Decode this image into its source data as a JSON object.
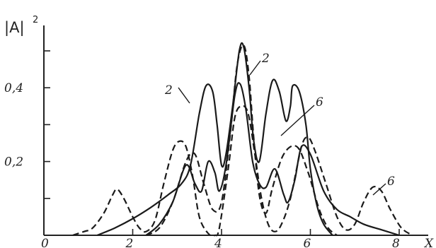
{
  "chart_data": {
    "type": "line",
    "title": "",
    "ylabel": "|A|",
    "ylabel_sup": "2",
    "xlabel": "X",
    "xlim": [
      0,
      8.8
    ],
    "ylim": [
      0,
      0.52
    ],
    "origin_label": "0",
    "x_ticks": [
      {
        "value": 2,
        "label": "2"
      },
      {
        "value": 4,
        "label": "4"
      },
      {
        "value": 6,
        "label": "6"
      },
      {
        "value": 8,
        "label": "8"
      }
    ],
    "y_ticks": [
      {
        "value": 0.2,
        "label": "0,2"
      },
      {
        "value": 0.4,
        "label": "0,4"
      }
    ],
    "y_minor_ticks": [
      0.1,
      0.3,
      0.5
    ],
    "grid": false,
    "legend": "none",
    "series": [
      {
        "name": "2",
        "style": "solid",
        "points": [
          [
            1.2,
            0.0
          ],
          [
            1.6,
            0.02
          ],
          [
            2.0,
            0.045
          ],
          [
            2.4,
            0.075
          ],
          [
            2.8,
            0.11
          ],
          [
            3.1,
            0.14
          ],
          [
            3.3,
            0.19
          ],
          [
            3.5,
            0.33
          ],
          [
            3.65,
            0.405
          ],
          [
            3.8,
            0.39
          ],
          [
            3.9,
            0.3
          ],
          [
            4.0,
            0.19
          ],
          [
            4.1,
            0.22
          ],
          [
            4.25,
            0.35
          ],
          [
            4.4,
            0.5
          ],
          [
            4.5,
            0.51
          ],
          [
            4.62,
            0.4
          ],
          [
            4.72,
            0.26
          ],
          [
            4.85,
            0.2
          ],
          [
            5.0,
            0.33
          ],
          [
            5.15,
            0.42
          ],
          [
            5.3,
            0.39
          ],
          [
            5.45,
            0.31
          ],
          [
            5.55,
            0.35
          ],
          [
            5.6,
            0.405
          ],
          [
            5.75,
            0.39
          ],
          [
            5.9,
            0.3
          ],
          [
            6.0,
            0.18
          ],
          [
            6.15,
            0.08
          ],
          [
            6.3,
            0.03
          ],
          [
            6.5,
            0.0
          ]
        ]
      },
      {
        "name": "2",
        "style": "dashed",
        "points": [
          [
            2.3,
            0.0
          ],
          [
            2.6,
            0.02
          ],
          [
            2.9,
            0.09
          ],
          [
            3.2,
            0.2
          ],
          [
            3.4,
            0.22
          ],
          [
            3.6,
            0.14
          ],
          [
            3.8,
            0.07
          ],
          [
            4.0,
            0.09
          ],
          [
            4.2,
            0.28
          ],
          [
            4.35,
            0.46
          ],
          [
            4.5,
            0.515
          ],
          [
            4.62,
            0.43
          ],
          [
            4.72,
            0.27
          ],
          [
            4.85,
            0.11
          ],
          [
            5.0,
            0.06
          ],
          [
            5.15,
            0.13
          ],
          [
            5.4,
            0.22
          ],
          [
            5.7,
            0.24
          ],
          [
            5.95,
            0.17
          ],
          [
            6.2,
            0.07
          ],
          [
            6.4,
            0.02
          ],
          [
            6.6,
            0.0
          ]
        ]
      },
      {
        "name": "6",
        "style": "solid",
        "points": [
          [
            2.3,
            0.0
          ],
          [
            2.6,
            0.03
          ],
          [
            2.9,
            0.09
          ],
          [
            3.2,
            0.19
          ],
          [
            3.4,
            0.14
          ],
          [
            3.55,
            0.12
          ],
          [
            3.7,
            0.2
          ],
          [
            3.85,
            0.17
          ],
          [
            3.95,
            0.12
          ],
          [
            4.1,
            0.19
          ],
          [
            4.3,
            0.38
          ],
          [
            4.42,
            0.41
          ],
          [
            4.55,
            0.34
          ],
          [
            4.7,
            0.2
          ],
          [
            4.85,
            0.14
          ],
          [
            5.0,
            0.13
          ],
          [
            5.2,
            0.18
          ],
          [
            5.4,
            0.11
          ],
          [
            5.5,
            0.09
          ],
          [
            5.65,
            0.15
          ],
          [
            5.8,
            0.24
          ],
          [
            6.0,
            0.22
          ],
          [
            6.3,
            0.12
          ],
          [
            6.6,
            0.07
          ],
          [
            6.9,
            0.05
          ],
          [
            7.2,
            0.03
          ],
          [
            7.6,
            0.015
          ],
          [
            8.0,
            0.0
          ]
        ]
      },
      {
        "name": "6",
        "style": "dashed",
        "points": [
          [
            0.65,
            0.0
          ],
          [
            0.9,
            0.01
          ],
          [
            1.1,
            0.02
          ],
          [
            1.35,
            0.06
          ],
          [
            1.55,
            0.11
          ],
          [
            1.65,
            0.125
          ],
          [
            1.8,
            0.1
          ],
          [
            2.0,
            0.05
          ],
          [
            2.15,
            0.02
          ],
          [
            2.3,
            0.01
          ],
          [
            2.5,
            0.04
          ],
          [
            2.7,
            0.14
          ],
          [
            2.9,
            0.23
          ],
          [
            3.05,
            0.255
          ],
          [
            3.2,
            0.24
          ],
          [
            3.35,
            0.16
          ],
          [
            3.5,
            0.05
          ],
          [
            3.7,
            0.005
          ],
          [
            3.85,
            0.0
          ],
          [
            3.95,
            0.02
          ],
          [
            4.15,
            0.18
          ],
          [
            4.3,
            0.32
          ],
          [
            4.45,
            0.35
          ],
          [
            4.6,
            0.33
          ],
          [
            4.75,
            0.22
          ],
          [
            4.9,
            0.1
          ],
          [
            5.05,
            0.03
          ],
          [
            5.2,
            0.01
          ],
          [
            5.35,
            0.03
          ],
          [
            5.55,
            0.1
          ],
          [
            5.8,
            0.24
          ],
          [
            5.95,
            0.265
          ],
          [
            6.1,
            0.23
          ],
          [
            6.35,
            0.14
          ],
          [
            6.6,
            0.05
          ],
          [
            6.8,
            0.015
          ],
          [
            7.0,
            0.03
          ],
          [
            7.2,
            0.09
          ],
          [
            7.4,
            0.13
          ],
          [
            7.6,
            0.12
          ],
          [
            7.8,
            0.07
          ],
          [
            8.05,
            0.02
          ],
          [
            8.3,
            0.0
          ]
        ]
      }
    ],
    "annotations": [
      {
        "text": "2",
        "series_index": 0
      },
      {
        "text": "2",
        "series_index": 1
      },
      {
        "text": "6",
        "series_index": 2
      },
      {
        "text": "6",
        "series_index": 3
      }
    ]
  }
}
